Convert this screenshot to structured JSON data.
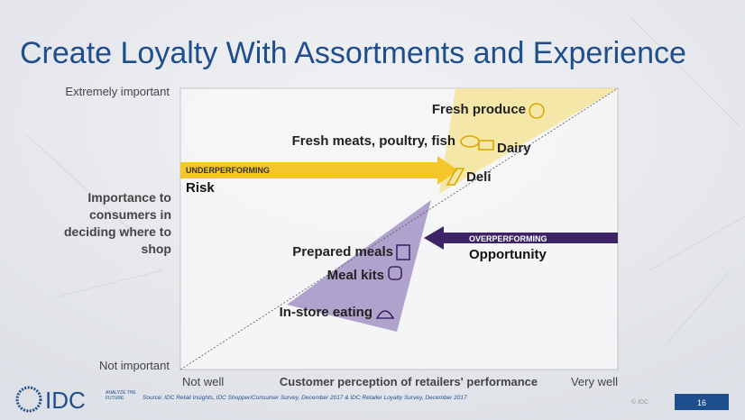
{
  "header": {
    "title": "Create Loyalty With Assortments and Experience"
  },
  "axes": {
    "y_top": "Extremely important",
    "y_bottom": "Not important",
    "y_title": "Importance to consumers in deciding where to shop",
    "x_left": "Not well",
    "x_right": "Very well",
    "x_title": "Customer perception of retailers' performance"
  },
  "arrows": [
    {
      "tag": "UNDERPERFORMING",
      "label": "Risk"
    },
    {
      "tag": "OVERPERFORMING",
      "label": "Opportunity"
    }
  ],
  "items": [
    {
      "label": "Fresh produce"
    },
    {
      "label": "Fresh meats, poultry, fish"
    },
    {
      "label": "Dairy"
    },
    {
      "label": "Deli"
    },
    {
      "label": "Prepared meals"
    },
    {
      "label": "Meal kits"
    },
    {
      "label": "In-store eating"
    }
  ],
  "footer": {
    "logo": "IDC",
    "tagline": "ANALYZE THE FUTURE",
    "source": "Source: IDC Retail Insights, IDC Shopper/Consumer Survey, December 2017 & IDC Retailer Loyalty Survey, December 2017",
    "copyright": "© IDC",
    "page": "16"
  }
}
